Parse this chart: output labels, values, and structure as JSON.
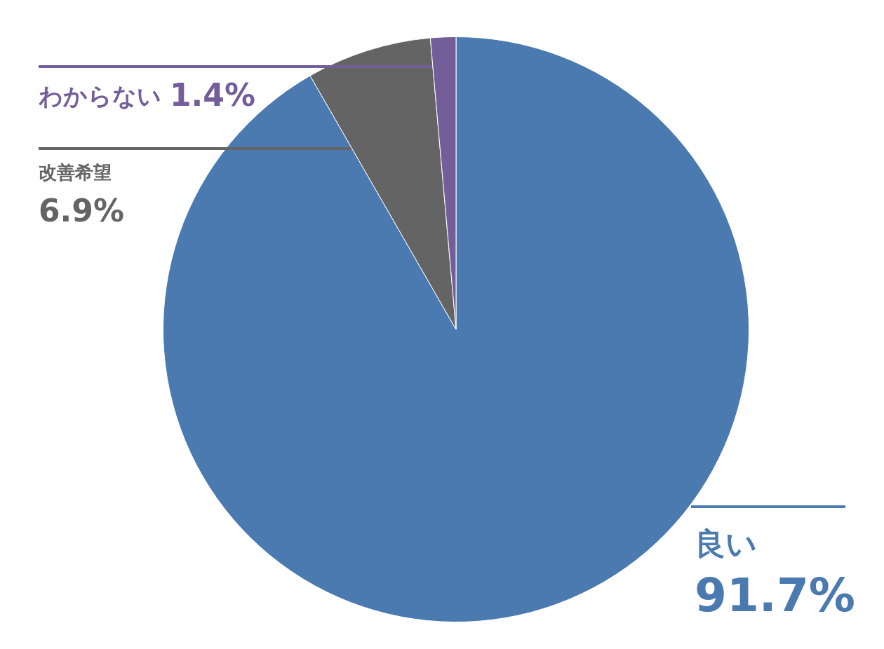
{
  "chart_data": {
    "type": "pie",
    "categories": [
      "良い",
      "改善希望",
      "わからない"
    ],
    "values": [
      91.7,
      6.9,
      1.4
    ],
    "colors": [
      "#4a7ab0",
      "#646464",
      "#745e9a"
    ],
    "value_labels": [
      "91.7%",
      "6.9%",
      "1.4%"
    ]
  }
}
